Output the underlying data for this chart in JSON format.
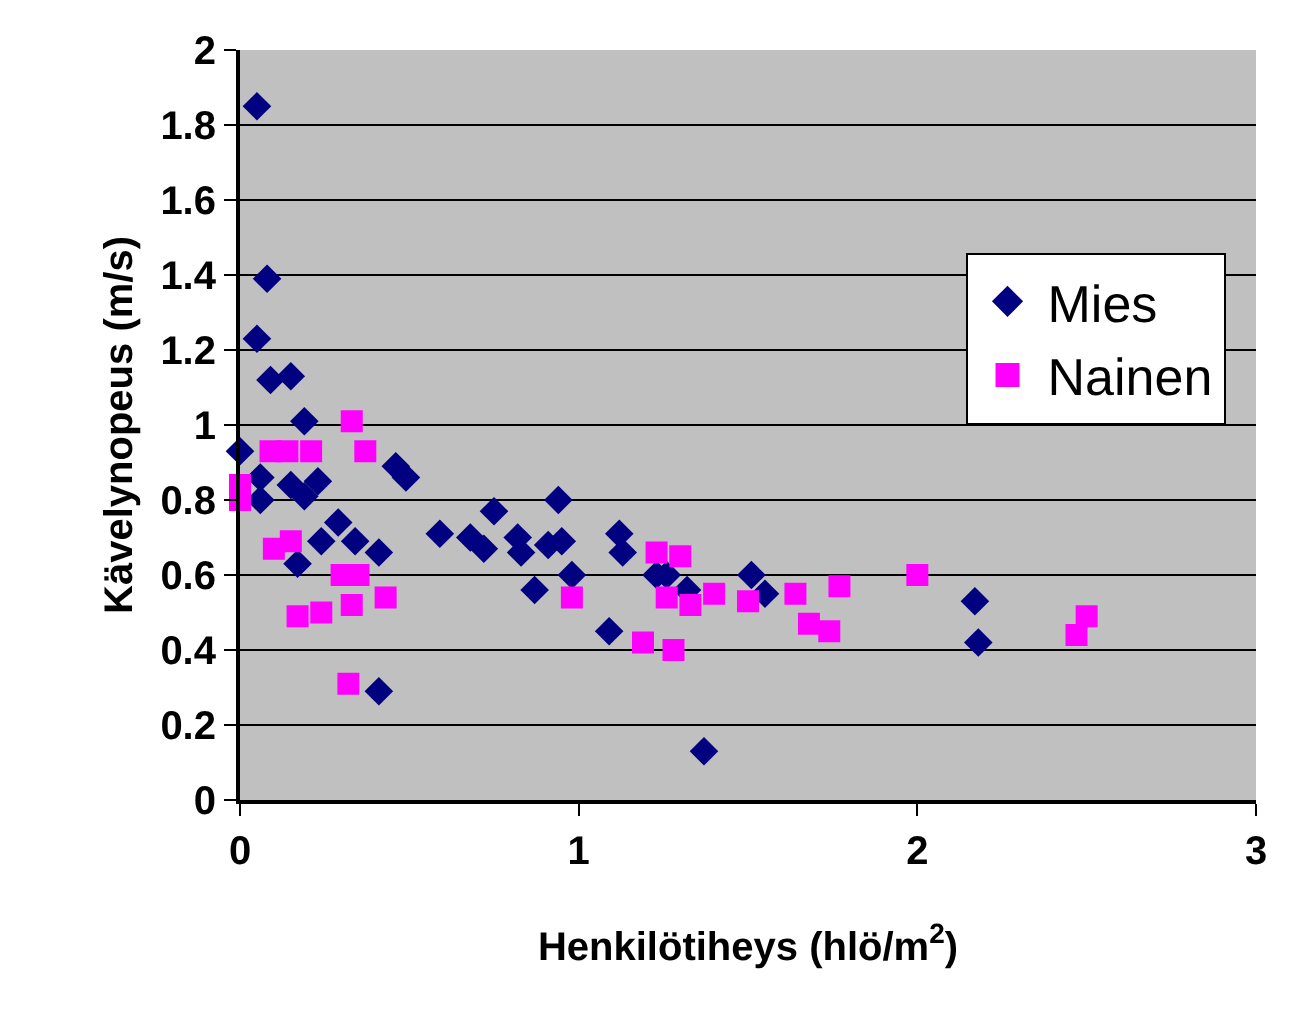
{
  "chart_data": {
    "type": "scatter",
    "xlabel": "Henkilötiheys (hlö/m$^{2}$)",
    "ylabel": "Kävelynopeus (m/s)",
    "xlim": [
      0,
      3
    ],
    "xticks": [
      0,
      1,
      2,
      3
    ],
    "ylim": [
      0,
      2
    ],
    "yticks": [
      0,
      0.2,
      0.4,
      0.6,
      0.8,
      1,
      1.2,
      1.4,
      1.6,
      1.8,
      2
    ],
    "grid": "y",
    "legend": "top right",
    "series": [
      {
        "name": "Mies",
        "color": "#000080",
        "marker": "diamond",
        "x": [
          0.05,
          0.08,
          0.05,
          0.09,
          0.15,
          0.19,
          0,
          0.06,
          0.06,
          0.15,
          0.23,
          0.19,
          0.29,
          0.34,
          0.24,
          0.17,
          0.41,
          0.46,
          0.49,
          0.41,
          0.59,
          0.68,
          0.72,
          0.75,
          0.82,
          0.83,
          0.87,
          0.91,
          0.94,
          0.95,
          0.98,
          1.09,
          1.12,
          1.13,
          1.23,
          1.26,
          1.37,
          1.51,
          1.55,
          2.17,
          2.18,
          1.32
        ],
        "values": [
          1.85,
          1.39,
          1.23,
          1.12,
          1.13,
          1.01,
          0.93,
          0.86,
          0.8,
          0.84,
          0.85,
          0.81,
          0.74,
          0.69,
          0.69,
          0.63,
          0.66,
          0.89,
          0.86,
          0.29,
          0.71,
          0.7,
          0.67,
          0.77,
          0.7,
          0.66,
          0.56,
          0.68,
          0.8,
          0.69,
          0.6,
          0.45,
          0.71,
          0.66,
          0.6,
          0.6,
          0.13,
          0.6,
          0.55,
          0.53,
          0.42,
          0.56
        ]
      },
      {
        "name": "Nainen",
        "color": "#ff00ff",
        "marker": "square",
        "x": [
          0,
          0,
          0.09,
          0.14,
          0.21,
          0.33,
          0.37,
          0.1,
          0.15,
          0.17,
          0.24,
          0.3,
          0.35,
          0.32,
          0.43,
          0.33,
          1.23,
          1.3,
          1.26,
          1.33,
          1.4,
          1.5,
          1.64,
          1.68,
          1.74,
          1.77,
          2.0,
          1.19,
          1.28,
          2.5,
          2.47,
          0.98
        ],
        "values": [
          0.84,
          0.8,
          0.93,
          0.93,
          0.93,
          1.01,
          0.93,
          0.67,
          0.69,
          0.49,
          0.5,
          0.6,
          0.6,
          0.31,
          0.54,
          0.52,
          0.66,
          0.65,
          0.54,
          0.52,
          0.55,
          0.53,
          0.55,
          0.47,
          0.45,
          0.57,
          0.6,
          0.42,
          0.4,
          0.49,
          0.44,
          0.54
        ]
      }
    ]
  }
}
